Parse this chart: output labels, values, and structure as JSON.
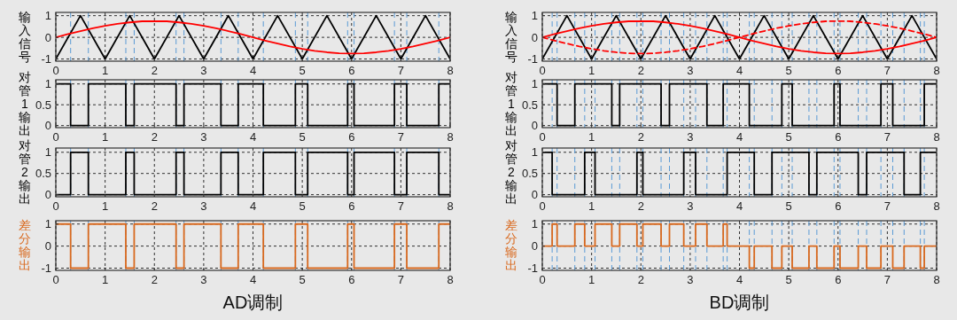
{
  "chart_data": [
    {
      "type": "line",
      "ylabel": "输入信号",
      "xlim": [
        0,
        8
      ],
      "ylim": [
        -1.1,
        1.15
      ],
      "xticks": [
        0,
        1,
        2,
        3,
        4,
        5,
        6,
        7,
        8
      ],
      "yticks": [
        -1,
        0,
        1
      ],
      "grid": true,
      "series": [
        {
          "color": "#000000",
          "x": [
            0,
            0.5,
            1,
            1.5,
            2,
            2.5,
            3,
            3.5,
            4,
            4.5,
            5,
            5.5,
            6,
            6.5,
            7,
            7.5,
            8
          ],
          "values": [
            -1,
            1,
            -1,
            1,
            -1,
            1,
            -1,
            1,
            -1,
            1,
            -1,
            1,
            -1,
            1,
            -1,
            1,
            -1
          ]
        },
        {
          "color": "#ff0000",
          "x": [
            0,
            0.25,
            0.5,
            0.75,
            1,
            1.25,
            1.5,
            1.75,
            2,
            2.25,
            2.5,
            2.75,
            3,
            3.25,
            3.5,
            3.75,
            4,
            4.25,
            4.5,
            4.75,
            5,
            5.25,
            5.5,
            5.75,
            6,
            6.25,
            6.5,
            6.75,
            7,
            7.25,
            7.5,
            7.75,
            8
          ],
          "values": [
            0,
            0.15,
            0.29,
            0.42,
            0.53,
            0.62,
            0.69,
            0.74,
            0.75,
            0.74,
            0.69,
            0.62,
            0.53,
            0.42,
            0.29,
            0.15,
            0,
            -0.15,
            -0.29,
            -0.42,
            -0.53,
            -0.62,
            -0.69,
            -0.74,
            -0.75,
            -0.74,
            -0.69,
            -0.62,
            -0.53,
            -0.42,
            -0.29,
            -0.15,
            0
          ]
        }
      ],
      "ref_lines": [
        {
          "axis": "x",
          "value": 0.3,
          "color": "#5b9bd5",
          "line_style": "dashed"
        },
        {
          "axis": "x",
          "value": 0.66,
          "color": "#5b9bd5",
          "line_style": "dashed"
        },
        {
          "axis": "x",
          "value": 1.42,
          "color": "#5b9bd5",
          "line_style": "dashed"
        },
        {
          "axis": "x",
          "value": 1.59,
          "color": "#5b9bd5",
          "line_style": "dashed"
        },
        {
          "axis": "x",
          "value": 2.44,
          "color": "#5b9bd5",
          "line_style": "dashed"
        },
        {
          "axis": "x",
          "value": 2.6,
          "color": "#5b9bd5",
          "line_style": "dashed"
        },
        {
          "axis": "x",
          "value": 3.35,
          "color": "#5b9bd5",
          "line_style": "dashed"
        },
        {
          "axis": "x",
          "value": 3.7,
          "color": "#5b9bd5",
          "line_style": "dashed"
        },
        {
          "axis": "x",
          "value": 4.21,
          "color": "#5b9bd5",
          "line_style": "dashed"
        },
        {
          "axis": "x",
          "value": 4.86,
          "color": "#5b9bd5",
          "line_style": "dashed"
        },
        {
          "axis": "x",
          "value": 5.11,
          "color": "#5b9bd5",
          "line_style": "dashed"
        },
        {
          "axis": "x",
          "value": 5.92,
          "color": "#5b9bd5",
          "line_style": "dashed"
        },
        {
          "axis": "x",
          "value": 6.05,
          "color": "#5b9bd5",
          "line_style": "dashed"
        },
        {
          "axis": "x",
          "value": 6.87,
          "color": "#5b9bd5",
          "line_style": "dashed"
        },
        {
          "axis": "x",
          "value": 7.12,
          "color": "#5b9bd5",
          "line_style": "dashed"
        },
        {
          "axis": "x",
          "value": 7.77,
          "color": "#5b9bd5",
          "line_style": "dashed"
        }
      ]
    },
    {
      "type": "step",
      "ylabel": "对管1输出",
      "xlim": [
        0,
        8
      ],
      "ylim": [
        -0.05,
        1.1
      ],
      "xticks": [
        0,
        1,
        2,
        3,
        4,
        5,
        6,
        7,
        8
      ],
      "yticks": [
        0,
        0.5,
        1
      ],
      "grid": true,
      "series": [
        {
          "color": "#000000",
          "x": [
            0,
            0.3,
            0.66,
            1.42,
            1.59,
            2.44,
            2.6,
            3.35,
            3.7,
            4.21,
            4.86,
            5.11,
            5.92,
            6.05,
            6.87,
            7.12,
            7.77,
            8
          ],
          "values": [
            1,
            0,
            1,
            0,
            1,
            0,
            1,
            0,
            1,
            0,
            1,
            0,
            1,
            0,
            1,
            0,
            1,
            1
          ]
        }
      ],
      "ref_lines": [
        {
          "axis": "x",
          "value": 0.3,
          "color": "#5b9bd5",
          "line_style": "dashed"
        },
        {
          "axis": "x",
          "value": 0.66,
          "color": "#5b9bd5",
          "line_style": "dashed"
        },
        {
          "axis": "x",
          "value": 1.42,
          "color": "#5b9bd5",
          "line_style": "dashed"
        },
        {
          "axis": "x",
          "value": 1.59,
          "color": "#5b9bd5",
          "line_style": "dashed"
        },
        {
          "axis": "x",
          "value": 2.44,
          "color": "#5b9bd5",
          "line_style": "dashed"
        },
        {
          "axis": "x",
          "value": 2.6,
          "color": "#5b9bd5",
          "line_style": "dashed"
        },
        {
          "axis": "x",
          "value": 3.35,
          "color": "#5b9bd5",
          "line_style": "dashed"
        },
        {
          "axis": "x",
          "value": 3.7,
          "color": "#5b9bd5",
          "line_style": "dashed"
        },
        {
          "axis": "x",
          "value": 4.21,
          "color": "#5b9bd5",
          "line_style": "dashed"
        },
        {
          "axis": "x",
          "value": 4.86,
          "color": "#5b9bd5",
          "line_style": "dashed"
        },
        {
          "axis": "x",
          "value": 5.11,
          "color": "#5b9bd5",
          "line_style": "dashed"
        },
        {
          "axis": "x",
          "value": 5.92,
          "color": "#5b9bd5",
          "line_style": "dashed"
        },
        {
          "axis": "x",
          "value": 6.05,
          "color": "#5b9bd5",
          "line_style": "dashed"
        },
        {
          "axis": "x",
          "value": 6.87,
          "color": "#5b9bd5",
          "line_style": "dashed"
        },
        {
          "axis": "x",
          "value": 7.12,
          "color": "#5b9bd5",
          "line_style": "dashed"
        },
        {
          "axis": "x",
          "value": 7.77,
          "color": "#5b9bd5",
          "line_style": "dashed"
        }
      ]
    },
    {
      "type": "step",
      "ylabel": "对管2输出",
      "xlim": [
        0,
        8
      ],
      "ylim": [
        -0.05,
        1.1
      ],
      "xticks": [
        0,
        1,
        2,
        3,
        4,
        5,
        6,
        7,
        8
      ],
      "yticks": [
        0,
        0.5,
        1
      ],
      "grid": true,
      "series": [
        {
          "color": "#000000",
          "x": [
            0,
            0.3,
            0.66,
            1.42,
            1.59,
            2.44,
            2.6,
            3.35,
            3.7,
            4.21,
            4.86,
            5.11,
            5.92,
            6.05,
            6.87,
            7.12,
            7.77,
            8
          ],
          "values": [
            0,
            1,
            0,
            1,
            0,
            1,
            0,
            1,
            0,
            1,
            0,
            1,
            0,
            1,
            0,
            1,
            0,
            0
          ]
        }
      ],
      "ref_lines": [
        {
          "axis": "x",
          "value": 0.3,
          "color": "#5b9bd5",
          "line_style": "dashed"
        },
        {
          "axis": "x",
          "value": 0.66,
          "color": "#5b9bd5",
          "line_style": "dashed"
        },
        {
          "axis": "x",
          "value": 1.42,
          "color": "#5b9bd5",
          "line_style": "dashed"
        },
        {
          "axis": "x",
          "value": 1.59,
          "color": "#5b9bd5",
          "line_style": "dashed"
        },
        {
          "axis": "x",
          "value": 2.44,
          "color": "#5b9bd5",
          "line_style": "dashed"
        },
        {
          "axis": "x",
          "value": 2.6,
          "color": "#5b9bd5",
          "line_style": "dashed"
        },
        {
          "axis": "x",
          "value": 3.35,
          "color": "#5b9bd5",
          "line_style": "dashed"
        },
        {
          "axis": "x",
          "value": 3.7,
          "color": "#5b9bd5",
          "line_style": "dashed"
        },
        {
          "axis": "x",
          "value": 4.21,
          "color": "#5b9bd5",
          "line_style": "dashed"
        },
        {
          "axis": "x",
          "value": 4.86,
          "color": "#5b9bd5",
          "line_style": "dashed"
        },
        {
          "axis": "x",
          "value": 5.11,
          "color": "#5b9bd5",
          "line_style": "dashed"
        },
        {
          "axis": "x",
          "value": 5.92,
          "color": "#5b9bd5",
          "line_style": "dashed"
        },
        {
          "axis": "x",
          "value": 6.05,
          "color": "#5b9bd5",
          "line_style": "dashed"
        },
        {
          "axis": "x",
          "value": 6.87,
          "color": "#5b9bd5",
          "line_style": "dashed"
        },
        {
          "axis": "x",
          "value": 7.12,
          "color": "#5b9bd5",
          "line_style": "dashed"
        },
        {
          "axis": "x",
          "value": 7.77,
          "color": "#5b9bd5",
          "line_style": "dashed"
        }
      ]
    },
    {
      "type": "step",
      "ylabel": "差分输出",
      "xlabel": "AD调制",
      "xlim": [
        0,
        8
      ],
      "ylim": [
        -1.1,
        1.15
      ],
      "xticks": [
        0,
        1,
        2,
        3,
        4,
        5,
        6,
        7,
        8
      ],
      "yticks": [
        -1,
        0,
        1
      ],
      "grid": true,
      "series": [
        {
          "color": "#d9691e",
          "x": [
            0,
            0.3,
            0.66,
            1.42,
            1.59,
            2.44,
            2.6,
            3.35,
            3.7,
            4.21,
            4.86,
            5.11,
            5.92,
            6.05,
            6.87,
            7.12,
            7.77,
            8
          ],
          "values": [
            1,
            -1,
            1,
            -1,
            1,
            -1,
            1,
            -1,
            1,
            -1,
            1,
            -1,
            1,
            -1,
            1,
            -1,
            1,
            1
          ]
        }
      ],
      "ref_lines": [
        {
          "axis": "x",
          "value": 0.3,
          "color": "#5b9bd5",
          "line_style": "dashed"
        },
        {
          "axis": "x",
          "value": 0.66,
          "color": "#5b9bd5",
          "line_style": "dashed"
        },
        {
          "axis": "x",
          "value": 1.42,
          "color": "#5b9bd5",
          "line_style": "dashed"
        },
        {
          "axis": "x",
          "value": 1.59,
          "color": "#5b9bd5",
          "line_style": "dashed"
        },
        {
          "axis": "x",
          "value": 2.44,
          "color": "#5b9bd5",
          "line_style": "dashed"
        },
        {
          "axis": "x",
          "value": 2.6,
          "color": "#5b9bd5",
          "line_style": "dashed"
        },
        {
          "axis": "x",
          "value": 3.35,
          "color": "#5b9bd5",
          "line_style": "dashed"
        },
        {
          "axis": "x",
          "value": 3.7,
          "color": "#5b9bd5",
          "line_style": "dashed"
        },
        {
          "axis": "x",
          "value": 4.21,
          "color": "#5b9bd5",
          "line_style": "dashed"
        },
        {
          "axis": "x",
          "value": 4.86,
          "color": "#5b9bd5",
          "line_style": "dashed"
        },
        {
          "axis": "x",
          "value": 5.11,
          "color": "#5b9bd5",
          "line_style": "dashed"
        },
        {
          "axis": "x",
          "value": 5.92,
          "color": "#5b9bd5",
          "line_style": "dashed"
        },
        {
          "axis": "x",
          "value": 6.05,
          "color": "#5b9bd5",
          "line_style": "dashed"
        },
        {
          "axis": "x",
          "value": 6.87,
          "color": "#5b9bd5",
          "line_style": "dashed"
        },
        {
          "axis": "x",
          "value": 7.12,
          "color": "#5b9bd5",
          "line_style": "dashed"
        },
        {
          "axis": "x",
          "value": 7.77,
          "color": "#5b9bd5",
          "line_style": "dashed"
        }
      ]
    },
    {
      "type": "line",
      "ylabel": "输入信号",
      "xlim": [
        0,
        8
      ],
      "ylim": [
        -1.1,
        1.15
      ],
      "xticks": [
        0,
        1,
        2,
        3,
        4,
        5,
        6,
        7,
        8
      ],
      "yticks": [
        -1,
        0,
        1
      ],
      "grid": true,
      "series": [
        {
          "color": "#000000",
          "x": [
            0,
            0.5,
            1,
            1.5,
            2,
            2.5,
            3,
            3.5,
            4,
            4.5,
            5,
            5.5,
            6,
            6.5,
            7,
            7.5,
            8
          ],
          "values": [
            -1,
            1,
            -1,
            1,
            -1,
            1,
            -1,
            1,
            -1,
            1,
            -1,
            1,
            -1,
            1,
            -1,
            1,
            -1
          ]
        },
        {
          "color": "#ff0000",
          "x": [
            0,
            0.25,
            0.5,
            0.75,
            1,
            1.25,
            1.5,
            1.75,
            2,
            2.25,
            2.5,
            2.75,
            3,
            3.25,
            3.5,
            3.75,
            4,
            4.25,
            4.5,
            4.75,
            5,
            5.25,
            5.5,
            5.75,
            6,
            6.25,
            6.5,
            6.75,
            7,
            7.25,
            7.5,
            7.75,
            8
          ],
          "values": [
            0,
            0.15,
            0.29,
            0.42,
            0.53,
            0.62,
            0.69,
            0.74,
            0.75,
            0.74,
            0.69,
            0.62,
            0.53,
            0.42,
            0.29,
            0.15,
            0,
            -0.15,
            -0.29,
            -0.42,
            -0.53,
            -0.62,
            -0.69,
            -0.74,
            -0.75,
            -0.74,
            -0.69,
            -0.62,
            -0.53,
            -0.42,
            -0.29,
            -0.15,
            0
          ]
        },
        {
          "color": "#ff0000",
          "line_style": "dashed",
          "x": [
            0,
            0.25,
            0.5,
            0.75,
            1,
            1.25,
            1.5,
            1.75,
            2,
            2.25,
            2.5,
            2.75,
            3,
            3.25,
            3.5,
            3.75,
            4,
            4.25,
            4.5,
            4.75,
            5,
            5.25,
            5.5,
            5.75,
            6,
            6.25,
            6.5,
            6.75,
            7,
            7.25,
            7.5,
            7.75,
            8
          ],
          "values": [
            0,
            -0.15,
            -0.29,
            -0.42,
            -0.53,
            -0.62,
            -0.69,
            -0.74,
            -0.75,
            -0.74,
            -0.69,
            -0.62,
            -0.53,
            -0.42,
            -0.29,
            -0.15,
            0,
            0.15,
            0.29,
            0.42,
            0.53,
            0.62,
            0.69,
            0.74,
            0.75,
            0.74,
            0.69,
            0.62,
            0.53,
            0.42,
            0.29,
            0.15,
            0
          ]
        }
      ],
      "ref_lines": [
        {
          "axis": "x",
          "value": 0.2,
          "color": "#5b9bd5",
          "line_style": "dashed"
        },
        {
          "axis": "x",
          "value": 0.3,
          "color": "#5b9bd5",
          "line_style": "dashed"
        },
        {
          "axis": "x",
          "value": 0.66,
          "color": "#5b9bd5",
          "line_style": "dashed"
        },
        {
          "axis": "x",
          "value": 0.86,
          "color": "#5b9bd5",
          "line_style": "dashed"
        },
        {
          "axis": "x",
          "value": 1.07,
          "color": "#5b9bd5",
          "line_style": "dashed"
        },
        {
          "axis": "x",
          "value": 1.41,
          "color": "#5b9bd5",
          "line_style": "dashed"
        },
        {
          "axis": "x",
          "value": 1.57,
          "color": "#5b9bd5",
          "line_style": "dashed"
        },
        {
          "axis": "x",
          "value": 1.92,
          "color": "#5b9bd5",
          "line_style": "dashed"
        },
        {
          "axis": "x",
          "value": 2.04,
          "color": "#5b9bd5",
          "line_style": "dashed"
        },
        {
          "axis": "x",
          "value": 2.41,
          "color": "#5b9bd5",
          "line_style": "dashed"
        },
        {
          "axis": "x",
          "value": 2.58,
          "color": "#5b9bd5",
          "line_style": "dashed"
        },
        {
          "axis": "x",
          "value": 2.87,
          "color": "#5b9bd5",
          "line_style": "dashed"
        },
        {
          "axis": "x",
          "value": 3.11,
          "color": "#5b9bd5",
          "line_style": "dashed"
        },
        {
          "axis": "x",
          "value": 3.34,
          "color": "#5b9bd5",
          "line_style": "dashed"
        },
        {
          "axis": "x",
          "value": 3.67,
          "color": "#5b9bd5",
          "line_style": "dashed"
        },
        {
          "axis": "x",
          "value": 3.75,
          "color": "#5b9bd5",
          "line_style": "dashed"
        },
        {
          "axis": "x",
          "value": 4.2,
          "color": "#5b9bd5",
          "line_style": "dashed"
        },
        {
          "axis": "x",
          "value": 4.3,
          "color": "#5b9bd5",
          "line_style": "dashed"
        },
        {
          "axis": "x",
          "value": 4.66,
          "color": "#5b9bd5",
          "line_style": "dashed"
        },
        {
          "axis": "x",
          "value": 4.86,
          "color": "#5b9bd5",
          "line_style": "dashed"
        },
        {
          "axis": "x",
          "value": 5.07,
          "color": "#5b9bd5",
          "line_style": "dashed"
        },
        {
          "axis": "x",
          "value": 5.41,
          "color": "#5b9bd5",
          "line_style": "dashed"
        },
        {
          "axis": "x",
          "value": 5.57,
          "color": "#5b9bd5",
          "line_style": "dashed"
        },
        {
          "axis": "x",
          "value": 5.92,
          "color": "#5b9bd5",
          "line_style": "dashed"
        },
        {
          "axis": "x",
          "value": 6.04,
          "color": "#5b9bd5",
          "line_style": "dashed"
        },
        {
          "axis": "x",
          "value": 6.41,
          "color": "#5b9bd5",
          "line_style": "dashed"
        },
        {
          "axis": "x",
          "value": 6.58,
          "color": "#5b9bd5",
          "line_style": "dashed"
        },
        {
          "axis": "x",
          "value": 6.87,
          "color": "#5b9bd5",
          "line_style": "dashed"
        },
        {
          "axis": "x",
          "value": 7.11,
          "color": "#5b9bd5",
          "line_style": "dashed"
        },
        {
          "axis": "x",
          "value": 7.34,
          "color": "#5b9bd5",
          "line_style": "dashed"
        },
        {
          "axis": "x",
          "value": 7.67,
          "color": "#5b9bd5",
          "line_style": "dashed"
        },
        {
          "axis": "x",
          "value": 7.75,
          "color": "#5b9bd5",
          "line_style": "dashed"
        }
      ]
    },
    {
      "type": "step",
      "ylabel": "对管1输出",
      "xlim": [
        0,
        8
      ],
      "ylim": [
        -0.05,
        1.1
      ],
      "xticks": [
        0,
        1,
        2,
        3,
        4,
        5,
        6,
        7,
        8
      ],
      "yticks": [
        0,
        0.5,
        1
      ],
      "grid": true,
      "series": [
        {
          "color": "#000000",
          "x": [
            0,
            0.3,
            0.66,
            1.41,
            1.57,
            2.41,
            2.58,
            3.34,
            3.67,
            4.2,
            4.86,
            5.07,
            5.92,
            6.04,
            6.87,
            7.11,
            7.75,
            8
          ],
          "values": [
            1,
            0,
            1,
            0,
            1,
            0,
            1,
            0,
            1,
            0,
            1,
            0,
            1,
            0,
            1,
            0,
            1,
            1
          ]
        }
      ],
      "ref_lines": [
        {
          "axis": "x",
          "value": 0.2,
          "color": "#5b9bd5",
          "line_style": "dashed"
        },
        {
          "axis": "x",
          "value": 0.3,
          "color": "#5b9bd5",
          "line_style": "dashed"
        },
        {
          "axis": "x",
          "value": 0.66,
          "color": "#5b9bd5",
          "line_style": "dashed"
        },
        {
          "axis": "x",
          "value": 0.86,
          "color": "#5b9bd5",
          "line_style": "dashed"
        },
        {
          "axis": "x",
          "value": 1.07,
          "color": "#5b9bd5",
          "line_style": "dashed"
        },
        {
          "axis": "x",
          "value": 1.41,
          "color": "#5b9bd5",
          "line_style": "dashed"
        },
        {
          "axis": "x",
          "value": 1.57,
          "color": "#5b9bd5",
          "line_style": "dashed"
        },
        {
          "axis": "x",
          "value": 1.92,
          "color": "#5b9bd5",
          "line_style": "dashed"
        },
        {
          "axis": "x",
          "value": 2.04,
          "color": "#5b9bd5",
          "line_style": "dashed"
        },
        {
          "axis": "x",
          "value": 2.41,
          "color": "#5b9bd5",
          "line_style": "dashed"
        },
        {
          "axis": "x",
          "value": 2.58,
          "color": "#5b9bd5",
          "line_style": "dashed"
        },
        {
          "axis": "x",
          "value": 2.87,
          "color": "#5b9bd5",
          "line_style": "dashed"
        },
        {
          "axis": "x",
          "value": 3.11,
          "color": "#5b9bd5",
          "line_style": "dashed"
        },
        {
          "axis": "x",
          "value": 3.34,
          "color": "#5b9bd5",
          "line_style": "dashed"
        },
        {
          "axis": "x",
          "value": 3.67,
          "color": "#5b9bd5",
          "line_style": "dashed"
        },
        {
          "axis": "x",
          "value": 3.75,
          "color": "#5b9bd5",
          "line_style": "dashed"
        },
        {
          "axis": "x",
          "value": 4.2,
          "color": "#5b9bd5",
          "line_style": "dashed"
        },
        {
          "axis": "x",
          "value": 4.3,
          "color": "#5b9bd5",
          "line_style": "dashed"
        },
        {
          "axis": "x",
          "value": 4.66,
          "color": "#5b9bd5",
          "line_style": "dashed"
        },
        {
          "axis": "x",
          "value": 4.86,
          "color": "#5b9bd5",
          "line_style": "dashed"
        },
        {
          "axis": "x",
          "value": 5.07,
          "color": "#5b9bd5",
          "line_style": "dashed"
        },
        {
          "axis": "x",
          "value": 5.41,
          "color": "#5b9bd5",
          "line_style": "dashed"
        },
        {
          "axis": "x",
          "value": 5.57,
          "color": "#5b9bd5",
          "line_style": "dashed"
        },
        {
          "axis": "x",
          "value": 5.92,
          "color": "#5b9bd5",
          "line_style": "dashed"
        },
        {
          "axis": "x",
          "value": 6.04,
          "color": "#5b9bd5",
          "line_style": "dashed"
        },
        {
          "axis": "x",
          "value": 6.41,
          "color": "#5b9bd5",
          "line_style": "dashed"
        },
        {
          "axis": "x",
          "value": 6.58,
          "color": "#5b9bd5",
          "line_style": "dashed"
        },
        {
          "axis": "x",
          "value": 6.87,
          "color": "#5b9bd5",
          "line_style": "dashed"
        },
        {
          "axis": "x",
          "value": 7.11,
          "color": "#5b9bd5",
          "line_style": "dashed"
        },
        {
          "axis": "x",
          "value": 7.34,
          "color": "#5b9bd5",
          "line_style": "dashed"
        },
        {
          "axis": "x",
          "value": 7.67,
          "color": "#5b9bd5",
          "line_style": "dashed"
        },
        {
          "axis": "x",
          "value": 7.75,
          "color": "#5b9bd5",
          "line_style": "dashed"
        }
      ]
    },
    {
      "type": "step",
      "ylabel": "对管2输出",
      "xlim": [
        0,
        8
      ],
      "ylim": [
        -0.05,
        1.1
      ],
      "xticks": [
        0,
        1,
        2,
        3,
        4,
        5,
        6,
        7,
        8
      ],
      "yticks": [
        0,
        0.5,
        1
      ],
      "grid": true,
      "series": [
        {
          "color": "#000000",
          "x": [
            0,
            0.2,
            0.86,
            1.07,
            1.92,
            2.04,
            2.87,
            3.11,
            3.75,
            4.3,
            4.66,
            5.41,
            5.57,
            6.41,
            6.58,
            7.34,
            7.67,
            8
          ],
          "values": [
            1,
            0,
            1,
            0,
            1,
            0,
            1,
            0,
            1,
            0,
            1,
            0,
            1,
            0,
            1,
            0,
            1,
            1
          ]
        }
      ],
      "ref_lines": [
        {
          "axis": "x",
          "value": 0.2,
          "color": "#5b9bd5",
          "line_style": "dashed"
        },
        {
          "axis": "x",
          "value": 0.3,
          "color": "#5b9bd5",
          "line_style": "dashed"
        },
        {
          "axis": "x",
          "value": 0.66,
          "color": "#5b9bd5",
          "line_style": "dashed"
        },
        {
          "axis": "x",
          "value": 0.86,
          "color": "#5b9bd5",
          "line_style": "dashed"
        },
        {
          "axis": "x",
          "value": 1.07,
          "color": "#5b9bd5",
          "line_style": "dashed"
        },
        {
          "axis": "x",
          "value": 1.41,
          "color": "#5b9bd5",
          "line_style": "dashed"
        },
        {
          "axis": "x",
          "value": 1.57,
          "color": "#5b9bd5",
          "line_style": "dashed"
        },
        {
          "axis": "x",
          "value": 1.92,
          "color": "#5b9bd5",
          "line_style": "dashed"
        },
        {
          "axis": "x",
          "value": 2.04,
          "color": "#5b9bd5",
          "line_style": "dashed"
        },
        {
          "axis": "x",
          "value": 2.41,
          "color": "#5b9bd5",
          "line_style": "dashed"
        },
        {
          "axis": "x",
          "value": 2.58,
          "color": "#5b9bd5",
          "line_style": "dashed"
        },
        {
          "axis": "x",
          "value": 2.87,
          "color": "#5b9bd5",
          "line_style": "dashed"
        },
        {
          "axis": "x",
          "value": 3.11,
          "color": "#5b9bd5",
          "line_style": "dashed"
        },
        {
          "axis": "x",
          "value": 3.34,
          "color": "#5b9bd5",
          "line_style": "dashed"
        },
        {
          "axis": "x",
          "value": 3.67,
          "color": "#5b9bd5",
          "line_style": "dashed"
        },
        {
          "axis": "x",
          "value": 3.75,
          "color": "#5b9bd5",
          "line_style": "dashed"
        },
        {
          "axis": "x",
          "value": 4.2,
          "color": "#5b9bd5",
          "line_style": "dashed"
        },
        {
          "axis": "x",
          "value": 4.3,
          "color": "#5b9bd5",
          "line_style": "dashed"
        },
        {
          "axis": "x",
          "value": 4.66,
          "color": "#5b9bd5",
          "line_style": "dashed"
        },
        {
          "axis": "x",
          "value": 4.86,
          "color": "#5b9bd5",
          "line_style": "dashed"
        },
        {
          "axis": "x",
          "value": 5.07,
          "color": "#5b9bd5",
          "line_style": "dashed"
        },
        {
          "axis": "x",
          "value": 5.41,
          "color": "#5b9bd5",
          "line_style": "dashed"
        },
        {
          "axis": "x",
          "value": 5.57,
          "color": "#5b9bd5",
          "line_style": "dashed"
        },
        {
          "axis": "x",
          "value": 5.92,
          "color": "#5b9bd5",
          "line_style": "dashed"
        },
        {
          "axis": "x",
          "value": 6.04,
          "color": "#5b9bd5",
          "line_style": "dashed"
        },
        {
          "axis": "x",
          "value": 6.41,
          "color": "#5b9bd5",
          "line_style": "dashed"
        },
        {
          "axis": "x",
          "value": 6.58,
          "color": "#5b9bd5",
          "line_style": "dashed"
        },
        {
          "axis": "x",
          "value": 6.87,
          "color": "#5b9bd5",
          "line_style": "dashed"
        },
        {
          "axis": "x",
          "value": 7.11,
          "color": "#5b9bd5",
          "line_style": "dashed"
        },
        {
          "axis": "x",
          "value": 7.34,
          "color": "#5b9bd5",
          "line_style": "dashed"
        },
        {
          "axis": "x",
          "value": 7.67,
          "color": "#5b9bd5",
          "line_style": "dashed"
        },
        {
          "axis": "x",
          "value": 7.75,
          "color": "#5b9bd5",
          "line_style": "dashed"
        }
      ]
    },
    {
      "type": "step",
      "ylabel": "差分输出",
      "xlabel": "BD调制",
      "xlim": [
        0,
        8
      ],
      "ylim": [
        -1.1,
        1.15
      ],
      "xticks": [
        0,
        1,
        2,
        3,
        4,
        5,
        6,
        7,
        8
      ],
      "yticks": [
        -1,
        0,
        1
      ],
      "grid": true,
      "series": [
        {
          "color": "#d9691e",
          "x": [
            0,
            0.2,
            0.3,
            0.66,
            0.86,
            1.07,
            1.41,
            1.57,
            1.92,
            2.04,
            2.41,
            2.58,
            2.87,
            3.11,
            3.34,
            3.67,
            3.75,
            4.2,
            4.3,
            4.66,
            4.86,
            5.07,
            5.41,
            5.57,
            5.92,
            6.04,
            6.41,
            6.58,
            6.87,
            7.11,
            7.34,
            7.67,
            7.75,
            8
          ],
          "values": [
            0,
            1,
            0,
            1,
            0,
            1,
            0,
            1,
            0,
            1,
            0,
            1,
            0,
            1,
            0,
            1,
            0,
            -1,
            0,
            -1,
            0,
            -1,
            0,
            -1,
            0,
            -1,
            0,
            -1,
            0,
            -1,
            0,
            -1,
            0,
            0
          ]
        }
      ],
      "ref_lines": [
        {
          "axis": "x",
          "value": 0.2,
          "color": "#5b9bd5",
          "line_style": "dashed"
        },
        {
          "axis": "x",
          "value": 0.3,
          "color": "#5b9bd5",
          "line_style": "dashed"
        },
        {
          "axis": "x",
          "value": 0.66,
          "color": "#5b9bd5",
          "line_style": "dashed"
        },
        {
          "axis": "x",
          "value": 0.86,
          "color": "#5b9bd5",
          "line_style": "dashed"
        },
        {
          "axis": "x",
          "value": 1.07,
          "color": "#5b9bd5",
          "line_style": "dashed"
        },
        {
          "axis": "x",
          "value": 1.41,
          "color": "#5b9bd5",
          "line_style": "dashed"
        },
        {
          "axis": "x",
          "value": 1.57,
          "color": "#5b9bd5",
          "line_style": "dashed"
        },
        {
          "axis": "x",
          "value": 1.92,
          "color": "#5b9bd5",
          "line_style": "dashed"
        },
        {
          "axis": "x",
          "value": 2.04,
          "color": "#5b9bd5",
          "line_style": "dashed"
        },
        {
          "axis": "x",
          "value": 2.41,
          "color": "#5b9bd5",
          "line_style": "dashed"
        },
        {
          "axis": "x",
          "value": 2.58,
          "color": "#5b9bd5",
          "line_style": "dashed"
        },
        {
          "axis": "x",
          "value": 2.87,
          "color": "#5b9bd5",
          "line_style": "dashed"
        },
        {
          "axis": "x",
          "value": 3.11,
          "color": "#5b9bd5",
          "line_style": "dashed"
        },
        {
          "axis": "x",
          "value": 3.34,
          "color": "#5b9bd5",
          "line_style": "dashed"
        },
        {
          "axis": "x",
          "value": 3.67,
          "color": "#5b9bd5",
          "line_style": "dashed"
        },
        {
          "axis": "x",
          "value": 3.75,
          "color": "#5b9bd5",
          "line_style": "dashed"
        },
        {
          "axis": "x",
          "value": 4.2,
          "color": "#5b9bd5",
          "line_style": "dashed"
        },
        {
          "axis": "x",
          "value": 4.3,
          "color": "#5b9bd5",
          "line_style": "dashed"
        },
        {
          "axis": "x",
          "value": 4.66,
          "color": "#5b9bd5",
          "line_style": "dashed"
        },
        {
          "axis": "x",
          "value": 4.86,
          "color": "#5b9bd5",
          "line_style": "dashed"
        },
        {
          "axis": "x",
          "value": 5.07,
          "color": "#5b9bd5",
          "line_style": "dashed"
        },
        {
          "axis": "x",
          "value": 5.41,
          "color": "#5b9bd5",
          "line_style": "dashed"
        },
        {
          "axis": "x",
          "value": 5.57,
          "color": "#5b9bd5",
          "line_style": "dashed"
        },
        {
          "axis": "x",
          "value": 5.92,
          "color": "#5b9bd5",
          "line_style": "dashed"
        },
        {
          "axis": "x",
          "value": 6.04,
          "color": "#5b9bd5",
          "line_style": "dashed"
        },
        {
          "axis": "x",
          "value": 6.41,
          "color": "#5b9bd5",
          "line_style": "dashed"
        },
        {
          "axis": "x",
          "value": 6.58,
          "color": "#5b9bd5",
          "line_style": "dashed"
        },
        {
          "axis": "x",
          "value": 6.87,
          "color": "#5b9bd5",
          "line_style": "dashed"
        },
        {
          "axis": "x",
          "value": 7.11,
          "color": "#5b9bd5",
          "line_style": "dashed"
        },
        {
          "axis": "x",
          "value": 7.34,
          "color": "#5b9bd5",
          "line_style": "dashed"
        },
        {
          "axis": "x",
          "value": 7.67,
          "color": "#5b9bd5",
          "line_style": "dashed"
        },
        {
          "axis": "x",
          "value": 7.75,
          "color": "#5b9bd5",
          "line_style": "dashed"
        }
      ]
    }
  ]
}
